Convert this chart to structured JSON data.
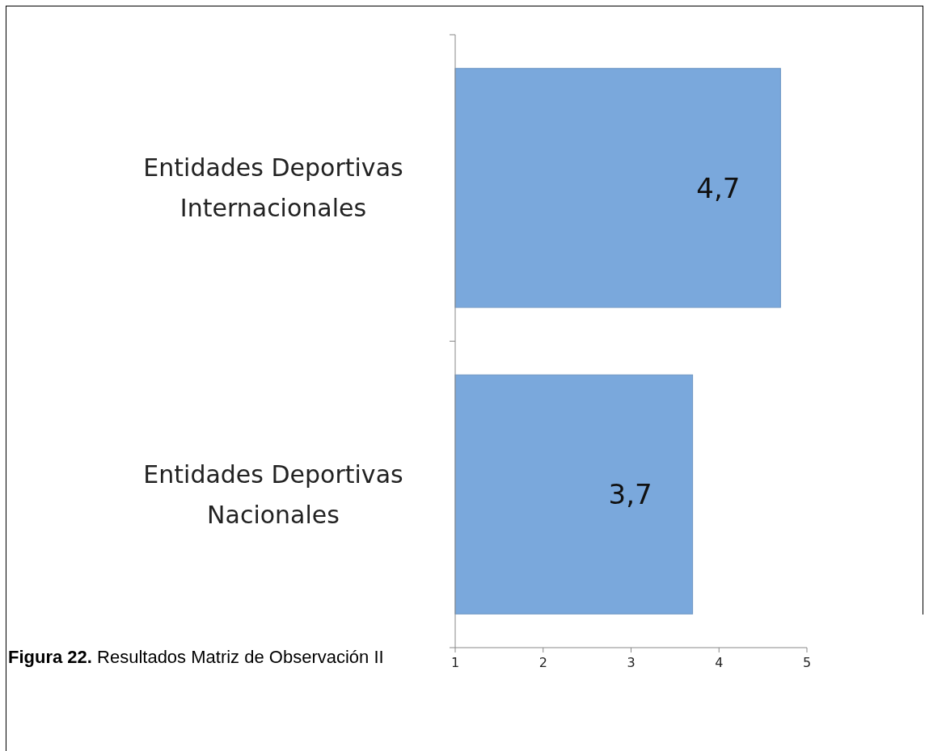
{
  "chart_data": {
    "type": "bar",
    "orientation": "horizontal",
    "title": "Figura 22. Resultados Matriz de Observación II",
    "categories": [
      "Entidades Deportivas Internacionales",
      "Entidades Deportivas Nacionales"
    ],
    "values": [
      4.7,
      3.7
    ],
    "value_labels": [
      "4,7",
      "3,7"
    ],
    "color": "#7aa8dc",
    "xlim": [
      1,
      5
    ],
    "xticks": [
      1,
      2,
      3,
      4,
      5
    ],
    "grid": false
  }
}
